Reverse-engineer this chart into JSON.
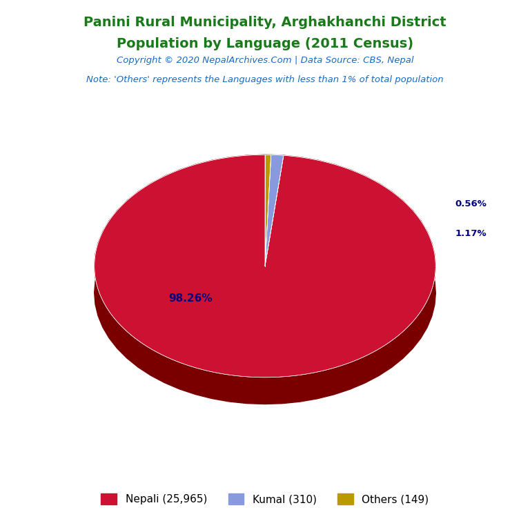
{
  "title_line1": "Panini Rural Municipality, Arghakhanchi District",
  "title_line2": "Population by Language (2011 Census)",
  "title_color": "#1a7a1a",
  "copyright_text": "Copyright © 2020 NepalArchives.Com | Data Source: CBS, Nepal",
  "copyright_color": "#1a6bbf",
  "note_text": "Note: 'Others' represents the Languages with less than 1% of total population",
  "note_color": "#1a6bbf",
  "labels": [
    "Nepali",
    "Kumal",
    "Others"
  ],
  "values": [
    25965,
    310,
    149
  ],
  "percentages": [
    98.26,
    1.17,
    0.56
  ],
  "colors": [
    "#cc1133",
    "#8899dd",
    "#bb9900"
  ],
  "legend_labels": [
    "Nepali (25,965)",
    "Kumal (310)",
    "Others (149)"
  ],
  "legend_colors": [
    "#cc1133",
    "#8899dd",
    "#bb9900"
  ],
  "autopct_color": "#000080",
  "background_color": "#ffffff",
  "startangle": 90,
  "depth_color_nepali": "#7a0000",
  "depth_color_kumal": "#445588",
  "depth_color_others": "#665500"
}
